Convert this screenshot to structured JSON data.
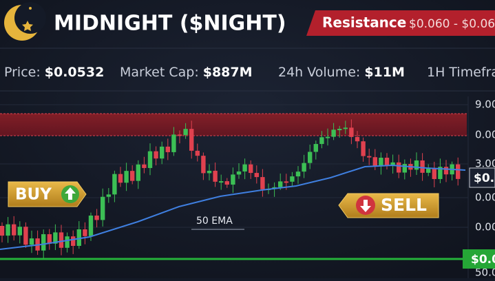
{
  "header": {
    "title": "MIDNIGHT ($NIGHT)",
    "banner_label": "Resistance",
    "banner_range": "$0.060 - $0.06"
  },
  "stats": [
    {
      "label": "Price:",
      "value": "$0.0532"
    },
    {
      "label": "Market Cap:",
      "value": "$887M"
    },
    {
      "label": "24h Volume:",
      "value": "$11M"
    },
    {
      "label": "1H Timefra"
    }
  ],
  "axis_labels": [
    "9.00",
    "0.00",
    "3.00",
    "0.00",
    "0.00",
    "50.0"
  ],
  "price_tags": [
    "$0.0",
    "$0.0"
  ],
  "signals": {
    "buy": "BUY",
    "sell": "SELL"
  },
  "ema_label": "50 EMA"
}
